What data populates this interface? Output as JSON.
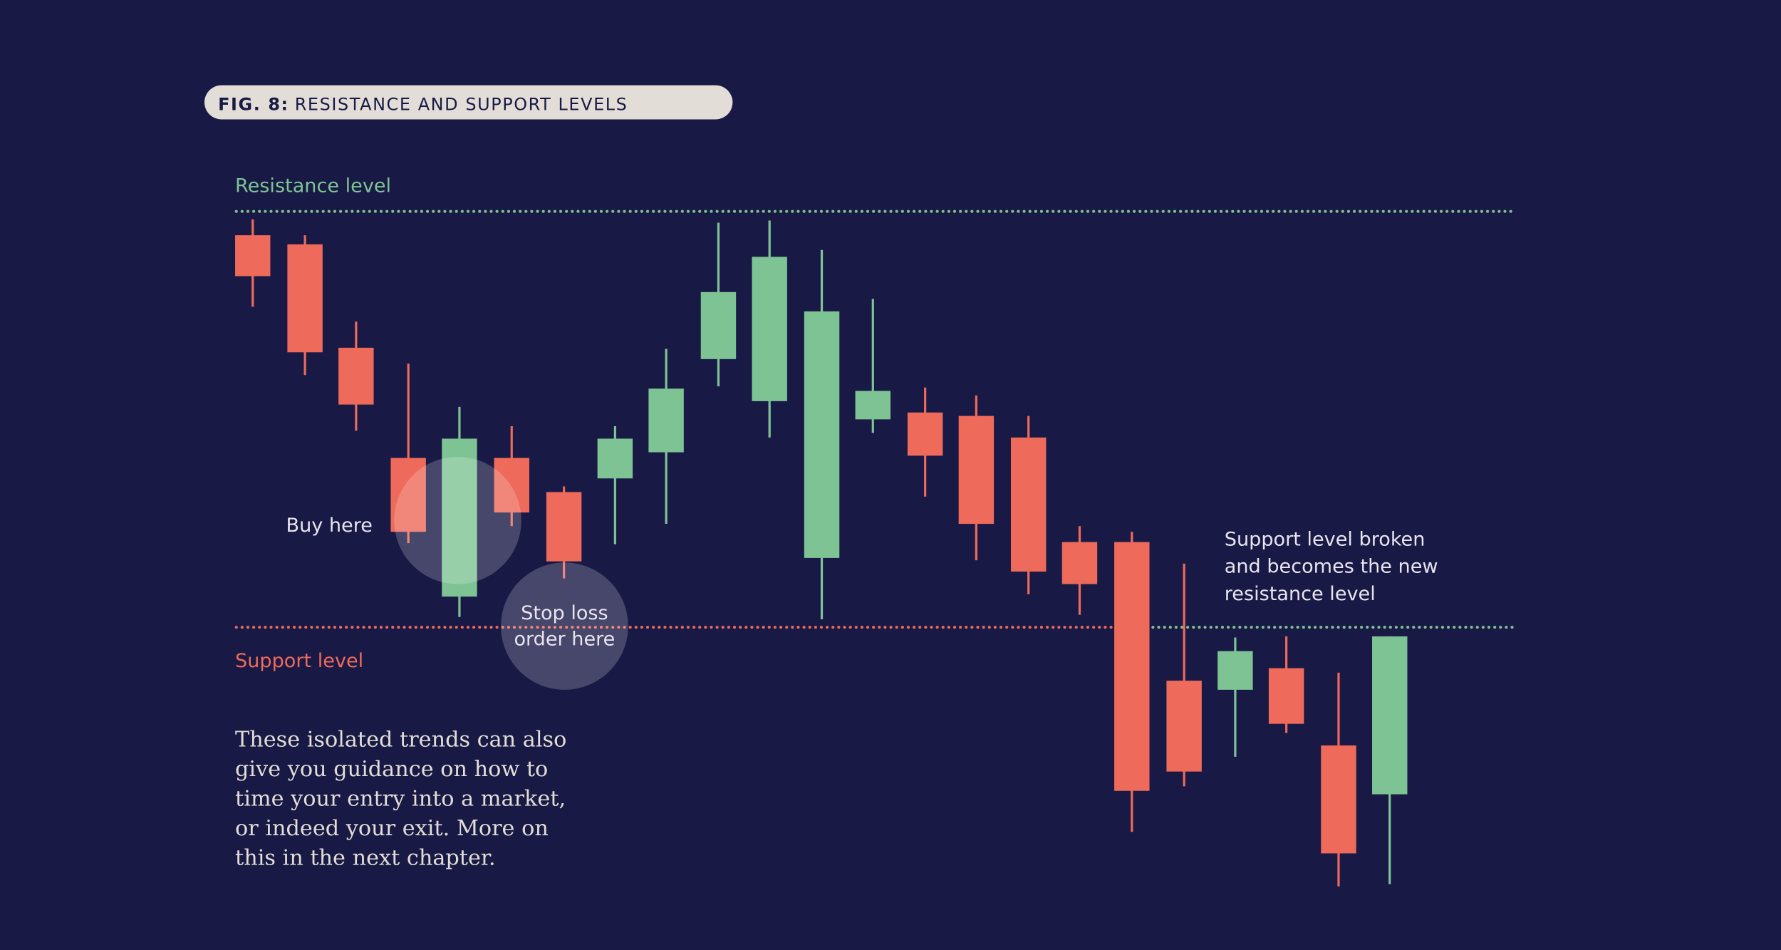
{
  "figure": {
    "label": "FIG. 8:",
    "title": "RESISTANCE AND SUPPORT LEVELS"
  },
  "levels": {
    "resistance": "Resistance level",
    "support": "Support level"
  },
  "annotations": {
    "buy": "Buy here",
    "stop_loss": [
      "Stop loss",
      "order here"
    ],
    "broken": [
      "Support level broken",
      "and becomes the new",
      "resistance level"
    ]
  },
  "body": [
    "These isolated trends can also",
    "give you guidance on how to",
    "time your entry into a market,",
    "or indeed your exit. More on",
    "this in the next chapter."
  ]
}
